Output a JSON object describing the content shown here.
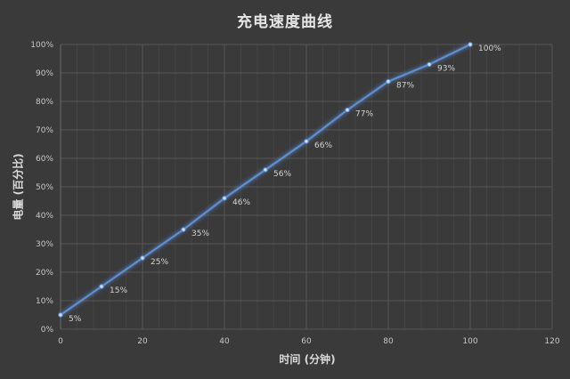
{
  "chart_data": {
    "type": "line",
    "title": "充电速度曲线",
    "xlabel": "时间 (分钟)",
    "ylabel": "电量 (百分比)",
    "x": [
      0,
      10,
      20,
      30,
      40,
      50,
      60,
      70,
      80,
      90,
      100
    ],
    "series": [
      {
        "name": "电量",
        "values": [
          5,
          15,
          25,
          35,
          46,
          56,
          66,
          77,
          87,
          93,
          100
        ],
        "labels": [
          "5%",
          "15%",
          "25%",
          "35%",
          "46%",
          "56%",
          "66%",
          "77%",
          "87%",
          "93%",
          "100%"
        ],
        "color": "#5b8fd6"
      }
    ],
    "xlim": [
      0,
      120
    ],
    "ylim": [
      0,
      100
    ],
    "xticks": [
      "0",
      "20",
      "40",
      "60",
      "80",
      "100",
      "120"
    ],
    "yticks": [
      "0%",
      "10%",
      "20%",
      "30%",
      "40%",
      "50%",
      "60%",
      "70%",
      "80%",
      "90%",
      "100%"
    ],
    "grid": true,
    "legend": "none"
  },
  "colors": {
    "background": "#3a3a3a",
    "grid_major": "#555555",
    "grid_minor": "#444444",
    "line": "#5b8fd6",
    "text": "#d4d4d4"
  }
}
